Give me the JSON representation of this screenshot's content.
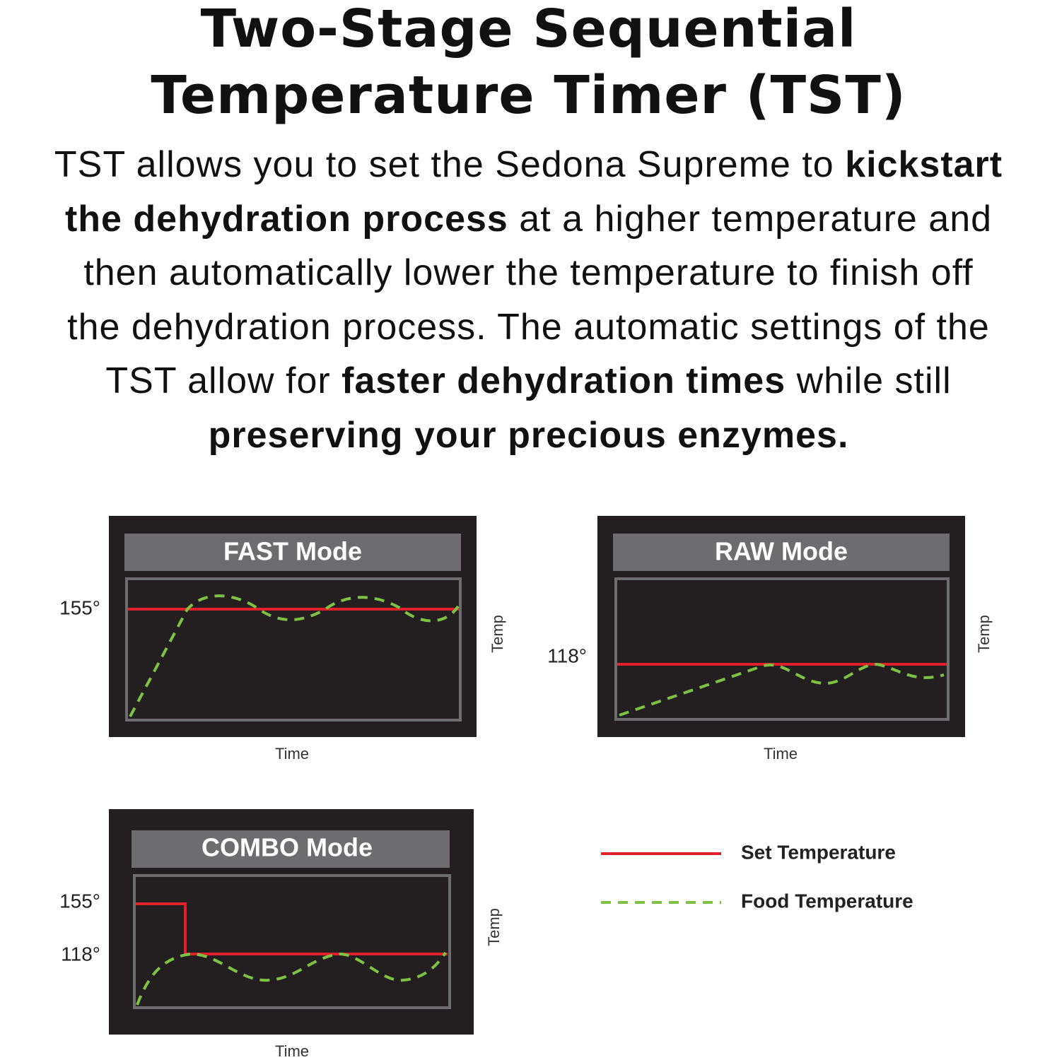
{
  "title": [
    "Two-Stage Sequential",
    "Temperature Timer (TST)"
  ],
  "intro": [
    [
      {
        "text": "TST allows you to set the Sedona Supreme to ",
        "bold": false
      },
      {
        "text": "kickstart",
        "bold": true
      }
    ],
    [
      {
        "text": "the dehydration process",
        "bold": true
      },
      {
        "text": " at a higher temperature and",
        "bold": false
      }
    ],
    [
      {
        "text": "then automatically lower the temperature to finish off",
        "bold": false
      }
    ],
    [
      {
        "text": "the dehydration process. The automatic settings of the",
        "bold": false
      }
    ],
    [
      {
        "text": "TST allow for ",
        "bold": false
      },
      {
        "text": "faster dehydration times",
        "bold": true
      },
      {
        "text": " while still",
        "bold": false
      }
    ],
    [
      {
        "text": "preserving your precious enzymes.",
        "bold": true
      }
    ]
  ],
  "panels": [
    {
      "title": "FAST Mode",
      "temp_labels": [
        "155°"
      ],
      "x_label": "Time",
      "y_label": "Temp"
    },
    {
      "title": "RAW Mode",
      "temp_labels": [
        "118°"
      ],
      "x_label": "Time",
      "y_label": "Temp"
    },
    {
      "title": "COMBO Mode",
      "temp_labels": [
        "155°",
        "118°"
      ],
      "x_label": "Time",
      "y_label": "Temp"
    }
  ],
  "legend": [
    {
      "label": "Set Temperature",
      "color": "#e0202a"
    },
    {
      "label": "Food Temperature",
      "color": "#7dc242"
    }
  ]
}
